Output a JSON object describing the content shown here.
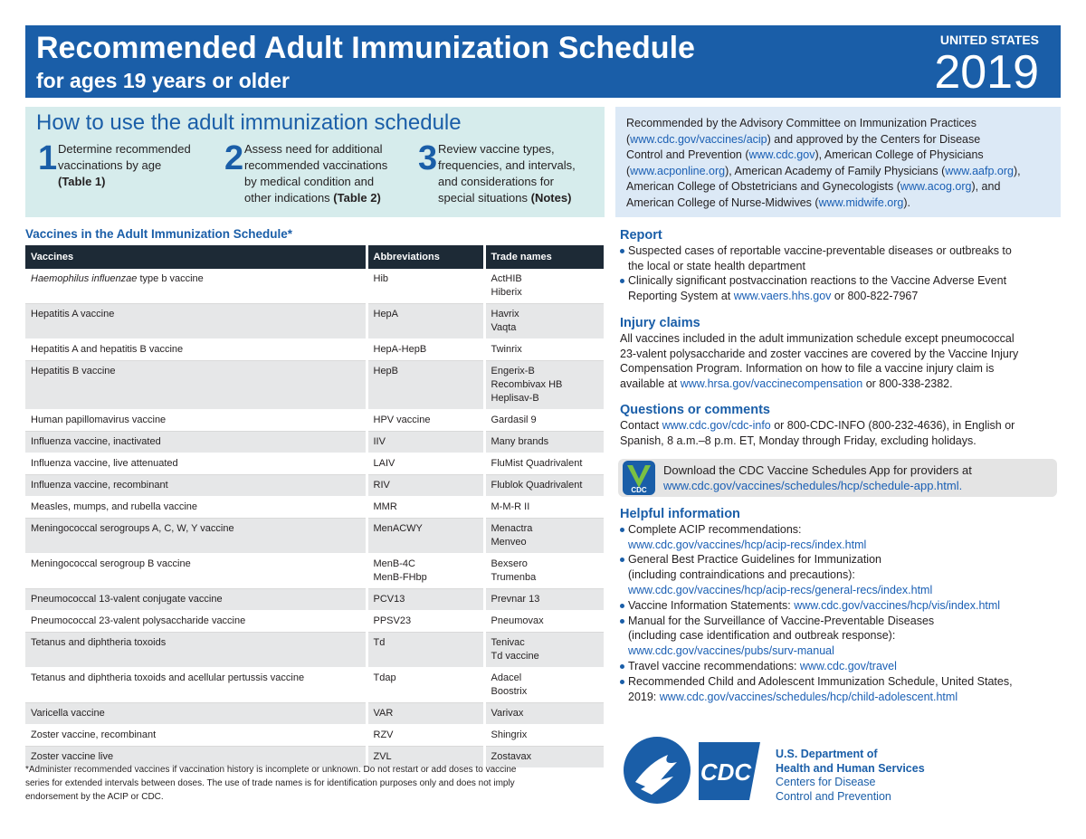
{
  "header": {
    "title": "Recommended Adult Immunization Schedule",
    "subtitle": "for ages 19 years or older",
    "country": "UNITED STATES",
    "year": "2019"
  },
  "how_to": {
    "title": "How to use the adult immunization schedule",
    "steps": [
      {
        "number": 1,
        "lines": [
          "Determine recommended",
          "vaccinations by age",
          [
            {
              "bold": "(Table 1)"
            }
          ]
        ]
      },
      {
        "number": 2,
        "lines": [
          "Assess need for additional",
          "recommended vaccinations",
          "by medical condition and",
          [
            "other indications ",
            {
              "bold": "(Table 2)"
            }
          ]
        ]
      },
      {
        "number": 3,
        "lines": [
          "Review vaccine types,",
          "frequencies, and intervals,",
          "and considerations for",
          [
            "special situations ",
            {
              "bold": "(Notes)"
            }
          ]
        ]
      }
    ]
  },
  "endorsement": [
    "Recommended by the Advisory Committee on Immunization Practices",
    [
      "(",
      {
        "link": "www.cdc.gov/vaccines/acip"
      },
      ") and approved by the Centers for Disease"
    ],
    [
      "Control and Prevention (",
      {
        "link": "www.cdc.gov"
      },
      "), American College of Physicians"
    ],
    [
      "(",
      {
        "link": "www.acponline.org"
      },
      "), American Academy of Family Physicians (",
      {
        "link": "www.aafp.org"
      },
      "),"
    ],
    [
      "American College of Obstetricians and Gynecologists (",
      {
        "link": "www.acog.org"
      },
      "), and"
    ],
    [
      "American College of Nurse-Midwives (",
      {
        "link": "www.midwife.org"
      },
      ")."
    ]
  ],
  "table": {
    "title": "Vaccines in the Adult Immunization Schedule*",
    "columns": [
      "Vaccines",
      "Abbreviations",
      "Trade names"
    ],
    "rows": [
      [
        [
          [
            {
              "italic": "Haemophilus influenzae"
            },
            " type b vaccine"
          ]
        ],
        [
          "Hib"
        ],
        [
          "ActHIB",
          "Hiberix"
        ]
      ],
      [
        [
          "Hepatitis A vaccine"
        ],
        [
          "HepA"
        ],
        [
          "Havrix",
          "Vaqta"
        ]
      ],
      [
        [
          "Hepatitis A and hepatitis B vaccine"
        ],
        [
          "HepA-HepB"
        ],
        [
          "Twinrix"
        ]
      ],
      [
        [
          "Hepatitis B vaccine"
        ],
        [
          "HepB"
        ],
        [
          "Engerix-B",
          "Recombivax HB",
          "Heplisav-B"
        ]
      ],
      [
        [
          "Human papillomavirus vaccine"
        ],
        [
          "HPV vaccine"
        ],
        [
          "Gardasil 9"
        ]
      ],
      [
        [
          "Influenza vaccine, inactivated"
        ],
        [
          "IIV"
        ],
        [
          "Many brands"
        ]
      ],
      [
        [
          "Influenza vaccine, live attenuated"
        ],
        [
          "LAIV"
        ],
        [
          "FluMist Quadrivalent"
        ]
      ],
      [
        [
          "Influenza vaccine, recombinant"
        ],
        [
          "RIV"
        ],
        [
          "Flublok Quadrivalent"
        ]
      ],
      [
        [
          "Measles, mumps, and rubella vaccine"
        ],
        [
          "MMR"
        ],
        [
          "M-M-R II"
        ]
      ],
      [
        [
          "Meningococcal serogroups A, C, W, Y vaccine"
        ],
        [
          "MenACWY"
        ],
        [
          "Menactra",
          "Menveo"
        ]
      ],
      [
        [
          "Meningococcal serogroup B vaccine"
        ],
        [
          "MenB-4C",
          "MenB-FHbp"
        ],
        [
          "Bexsero",
          "Trumenba"
        ]
      ],
      [
        [
          "Pneumococcal 13-valent conjugate vaccine"
        ],
        [
          "PCV13"
        ],
        [
          "Prevnar 13"
        ]
      ],
      [
        [
          "Pneumococcal 23-valent polysaccharide vaccine"
        ],
        [
          "PPSV23"
        ],
        [
          "Pneumovax"
        ]
      ],
      [
        [
          "Tetanus and diphtheria toxoids"
        ],
        [
          "Td"
        ],
        [
          "Tenivac",
          "Td vaccine"
        ]
      ],
      [
        [
          "Tetanus and diphtheria toxoids and acellular pertussis vaccine"
        ],
        [
          "Tdap"
        ],
        [
          "Adacel",
          "Boostrix"
        ]
      ],
      [
        [
          "Varicella vaccine"
        ],
        [
          "VAR"
        ],
        [
          "Varivax"
        ]
      ],
      [
        [
          "Zoster vaccine, recombinant"
        ],
        [
          "RZV"
        ],
        [
          "Shingrix"
        ]
      ],
      [
        [
          "Zoster vaccine live"
        ],
        [
          "ZVL"
        ],
        [
          "Zostavax"
        ]
      ]
    ],
    "footnote": [
      "*Administer recommended vaccines if vaccination history is incomplete or unknown. Do not restart or add doses to vaccine",
      "series for extended intervals between doses. The use of trade names is for identification purposes only and does not imply",
      "endorsement by the ACIP or CDC."
    ]
  },
  "report": {
    "heading": "Report",
    "items": [
      [
        "Suspected cases of reportable vaccine-preventable diseases or outbreaks to",
        "the local or state health department"
      ],
      [
        "Clinically significant postvaccination reactions to the Vaccine Adverse Event",
        [
          "Reporting System at ",
          {
            "link": "www.vaers.hhs.gov"
          },
          " or 800-822-7967"
        ]
      ]
    ]
  },
  "injury": {
    "heading": "Injury claims",
    "lines": [
      "All vaccines included in the adult immunization schedule except pneumococcal",
      "23-valent polysaccharide and zoster vaccines are covered by the Vaccine Injury",
      "Compensation Program. Information on how to file a vaccine injury claim is",
      [
        "available at ",
        {
          "link": "www.hrsa.gov/vaccinecompensation"
        },
        " or 800-338-2382."
      ]
    ]
  },
  "questions": {
    "heading": "Questions or comments",
    "lines": [
      [
        "Contact ",
        {
          "link": "www.cdc.gov/cdc-info"
        },
        " or 800-CDC-INFO (800-232-4636), in English or"
      ],
      "Spanish, 8 a.m.–8 p.m. ET, Monday through Friday, excluding holidays."
    ]
  },
  "app": {
    "icon_label": "CDC",
    "lines": [
      "Download the CDC Vaccine Schedules App for providers at",
      [
        {
          "link": "www.cdc.gov/vaccines/schedules/hcp/schedule-app.html"
        },
        {
          "link": "."
        }
      ]
    ]
  },
  "helpful": {
    "heading": "Helpful information",
    "items": [
      [
        "Complete ACIP recommendations:",
        [
          {
            "link": "www.cdc.gov/vaccines/hcp/acip-recs/index.html"
          }
        ]
      ],
      [
        "General Best Practice Guidelines for Immunization",
        "(including contraindications and precautions):",
        [
          {
            "link": "www.cdc.gov/vaccines/hcp/acip-recs/general-recs/index.html"
          }
        ]
      ],
      [
        [
          "Vaccine Information Statements: ",
          {
            "link": "www.cdc.gov/vaccines/hcp/vis/index.html"
          }
        ]
      ],
      [
        "Manual for the Surveillance of Vaccine-Preventable Diseases",
        "(including case identification and outbreak response):",
        [
          {
            "link": "www.cdc.gov/vaccines/pubs/surv-manual"
          }
        ]
      ],
      [
        [
          "Travel vaccine recommendations: ",
          {
            "link": "www.cdc.gov/travel"
          }
        ]
      ],
      [
        "Recommended Child and Adolescent Immunization Schedule, United States,",
        [
          "2019: ",
          {
            "link": "www.cdc.gov/vaccines/schedules/hcp/child-adolescent.html"
          }
        ]
      ]
    ]
  },
  "agency": {
    "logo_label": "CDC",
    "department": [
      "U.S. Department of",
      "Health and Human Services"
    ],
    "center": [
      "Centers for Disease",
      "Control and Prevention"
    ]
  }
}
